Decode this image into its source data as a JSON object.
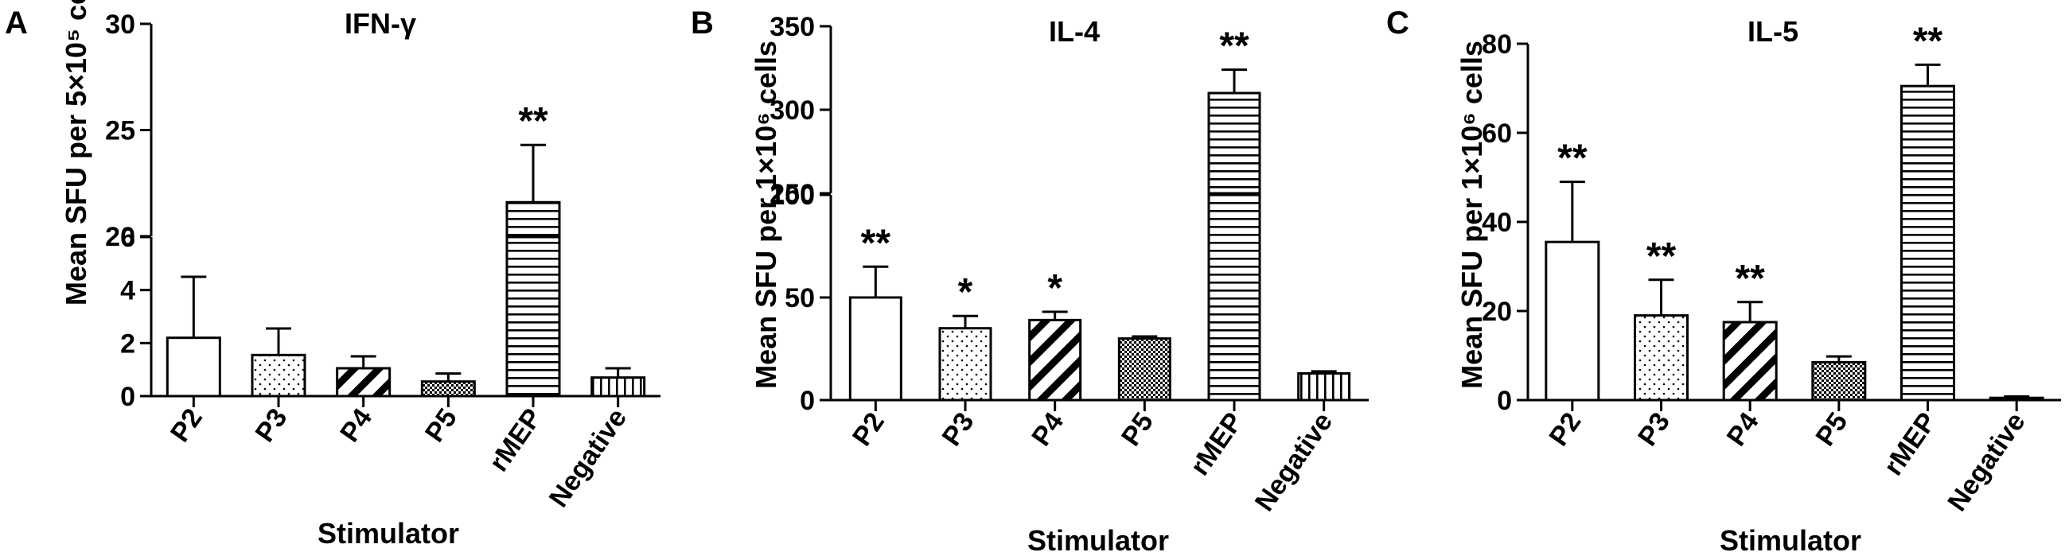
{
  "chart_data": [
    {
      "type": "bar",
      "panel_letter": "A",
      "title": "IFN-γ",
      "xlabel": "Stimulator",
      "ylabel": "Mean SFU per 5×10⁵ cells",
      "categories": [
        "P2",
        "P3",
        "P4",
        "P5",
        "rMEP",
        "Negative"
      ],
      "values": [
        2.2,
        1.55,
        1.05,
        0.55,
        21.6,
        0.7
      ],
      "errors": [
        2.3,
        1.0,
        0.45,
        0.3,
        2.7,
        0.35
      ],
      "significance": [
        "",
        "",
        "",
        "",
        "**",
        ""
      ],
      "patterns": [
        "open",
        "dots",
        "diagonal",
        "checker",
        "horizontal",
        "vertical"
      ],
      "axis_break": true,
      "segments": [
        {
          "range": [
            0,
            6
          ],
          "ticks": [
            0,
            2,
            4,
            6
          ]
        },
        {
          "range": [
            20,
            30
          ],
          "ticks": [
            20,
            25,
            30
          ]
        }
      ]
    },
    {
      "type": "bar",
      "panel_letter": "B",
      "title": "IL-4",
      "xlabel": "Stimulator",
      "ylabel": "Mean SFU per 1×10⁶ cells",
      "categories": [
        "P2",
        "P3",
        "P4",
        "P5",
        "rMEP",
        "Negative"
      ],
      "values": [
        50,
        35,
        39,
        30,
        310,
        13
      ],
      "errors": [
        15,
        6,
        4,
        1,
        14,
        1
      ],
      "significance": [
        "**",
        "*",
        "*",
        "",
        "**",
        ""
      ],
      "patterns": [
        "open",
        "dots",
        "diagonal",
        "checker",
        "horizontal",
        "vertical"
      ],
      "axis_break": true,
      "segments": [
        {
          "range": [
            0,
            100
          ],
          "ticks": [
            0,
            50,
            100
          ]
        },
        {
          "range": [
            250,
            350
          ],
          "ticks": [
            250,
            300,
            350
          ]
        }
      ]
    },
    {
      "type": "bar",
      "panel_letter": "C",
      "title": "IL-5",
      "xlabel": "Stimulator",
      "ylabel": "Mean SFU per 1×10⁶ cells",
      "categories": [
        "P2",
        "P3",
        "P4",
        "P5",
        "rMEP",
        "Negative"
      ],
      "values": [
        35.5,
        19,
        17.5,
        8.5,
        70.5,
        0.5
      ],
      "errors": [
        13.5,
        8,
        4.5,
        1.3,
        4.8,
        0.3
      ],
      "significance": [
        "**",
        "**",
        "**",
        "",
        "**",
        ""
      ],
      "patterns": [
        "open",
        "dots",
        "diagonal",
        "checker",
        "horizontal",
        "vertical"
      ],
      "axis_break": false,
      "segments": [
        {
          "range": [
            0,
            80
          ],
          "ticks": [
            0,
            20,
            40,
            60,
            80
          ]
        }
      ]
    }
  ]
}
